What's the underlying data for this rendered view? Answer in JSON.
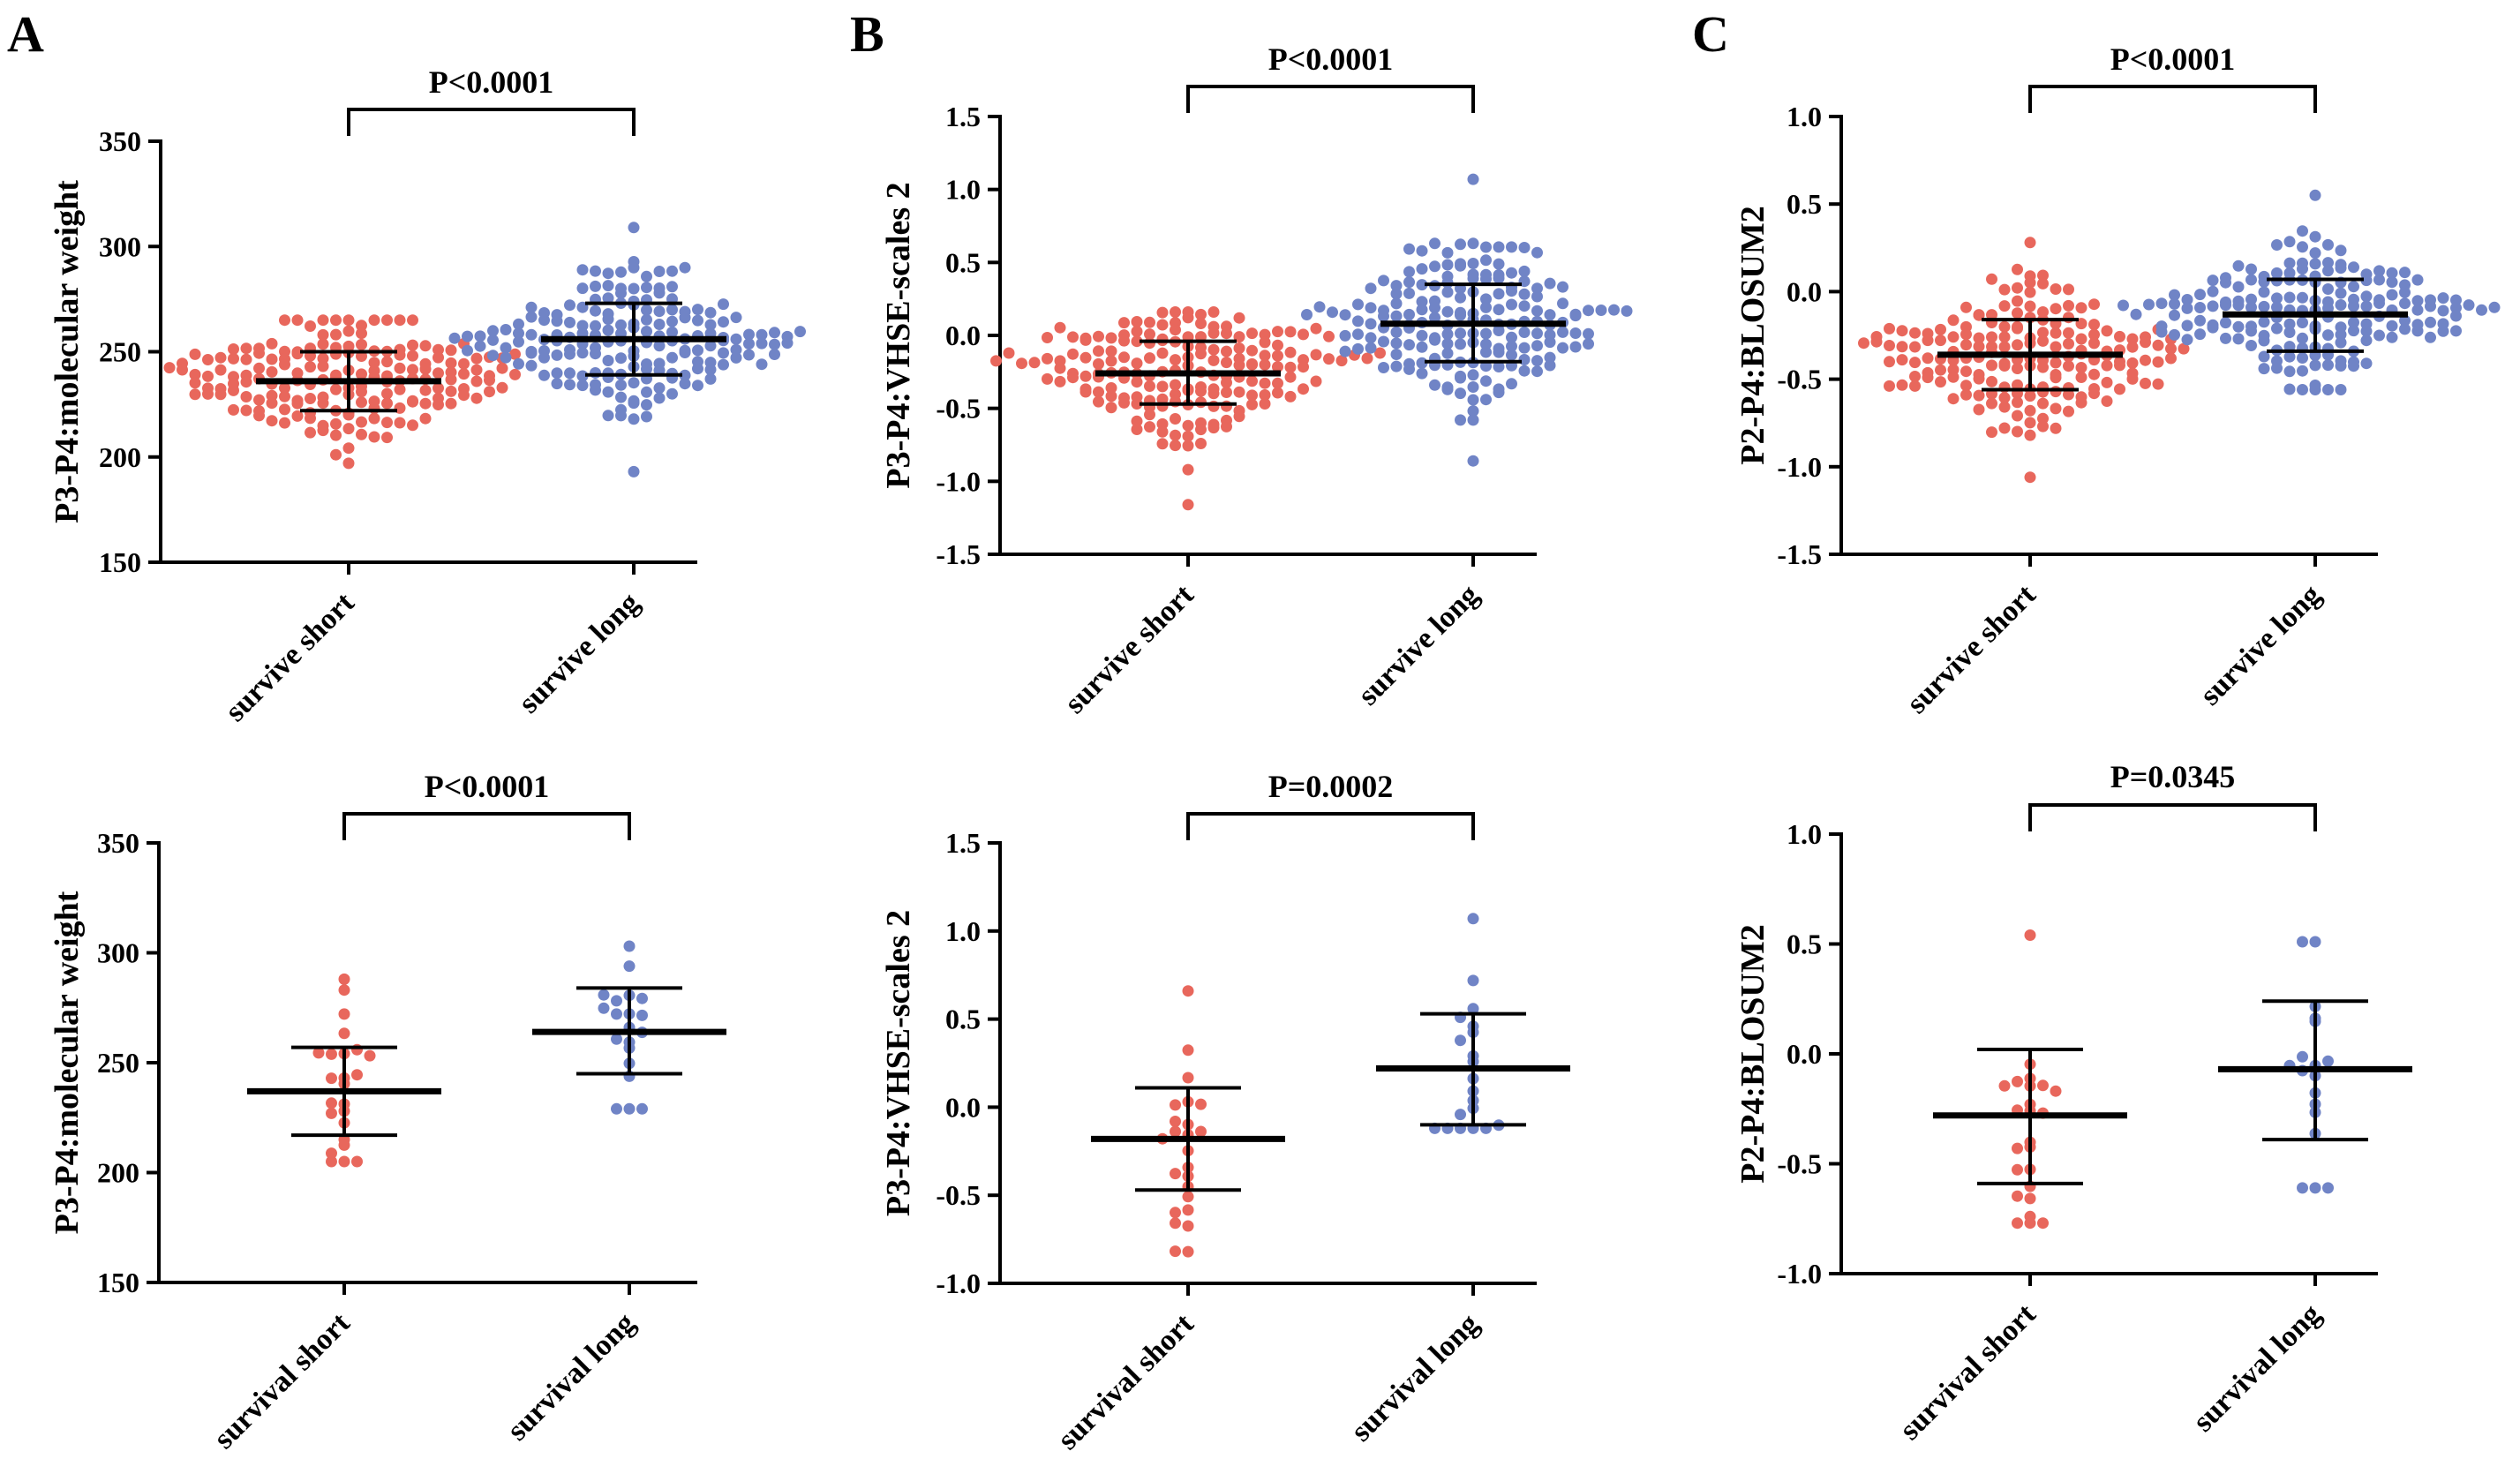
{
  "panel_letters": [
    "A",
    "B",
    "C"
  ],
  "colors": {
    "short": "#e8675c",
    "long": "#7084c6",
    "axis": "#000000"
  },
  "chart_data": [
    {
      "type": "scatter",
      "panel": "A",
      "ylabel": "P3-P4:molecular weight",
      "ylim": [
        150,
        350
      ],
      "yticks": [
        150,
        200,
        250,
        300,
        350
      ],
      "categories": [
        "survive short",
        "survive long"
      ],
      "pvalue": "P<0.0001",
      "series": [
        {
          "mean": 236,
          "sd_low": 222,
          "sd_high": 250,
          "n": 180,
          "min": 197,
          "max": 265,
          "outliers": []
        },
        {
          "mean": 256,
          "sd_low": 239,
          "sd_high": 273,
          "n": 180,
          "min": 218,
          "max": 309,
          "outliers": [
            193
          ]
        }
      ]
    },
    {
      "type": "scatter",
      "panel": "B",
      "ylabel": "P3-P4:VHSE-scales 2",
      "ylim": [
        -1.5,
        1.5
      ],
      "yticks": [
        -1.5,
        -1.0,
        -0.5,
        0.0,
        0.5,
        1.0,
        1.5
      ],
      "categories": [
        "survive short",
        "survive long"
      ],
      "pvalue": "P<0.0001",
      "series": [
        {
          "mean": -0.26,
          "sd_low": -0.47,
          "sd_high": -0.04,
          "n": 180,
          "min": -0.92,
          "max": 0.16,
          "outliers": [
            -1.16
          ]
        },
        {
          "mean": 0.08,
          "sd_low": -0.18,
          "sd_high": 0.35,
          "n": 180,
          "min": -0.58,
          "max": 0.63,
          "outliers": [
            1.07,
            -0.86
          ]
        }
      ]
    },
    {
      "type": "scatter",
      "panel": "C",
      "ylabel": "P2-P4:BLOSUM2",
      "ylim": [
        -1.5,
        1.0
      ],
      "yticks": [
        -1.5,
        -1.0,
        -0.5,
        0.0,
        0.5,
        1.0
      ],
      "categories": [
        "survive short",
        "survive long"
      ],
      "pvalue": "P<0.0001",
      "series": [
        {
          "mean": -0.36,
          "sd_low": -0.56,
          "sd_high": -0.16,
          "n": 180,
          "min": -0.82,
          "max": 0.28,
          "outliers": [
            -1.06
          ]
        },
        {
          "mean": -0.13,
          "sd_low": -0.34,
          "sd_high": 0.07,
          "n": 180,
          "min": -0.56,
          "max": 0.55,
          "outliers": []
        }
      ]
    },
    {
      "type": "scatter",
      "panel": "A2",
      "ylabel": "P3-P4:molecular weight",
      "ylim": [
        150,
        350
      ],
      "yticks": [
        150,
        200,
        250,
        300,
        350
      ],
      "categories": [
        "survival short",
        "survival long"
      ],
      "pvalue": "P<0.0001",
      "series": [
        {
          "mean": 237,
          "sd_low": 217,
          "sd_high": 257,
          "n": 24,
          "min": 205,
          "max": 288,
          "outliers": []
        },
        {
          "mean": 264,
          "sd_low": 245,
          "sd_high": 284,
          "n": 20,
          "min": 229,
          "max": 303,
          "outliers": []
        }
      ]
    },
    {
      "type": "scatter",
      "panel": "B2",
      "ylabel": "P3-P4:VHSE-scales 2",
      "ylim": [
        -1.0,
        1.5
      ],
      "yticks": [
        -1.0,
        -0.5,
        0.0,
        0.5,
        1.0,
        1.5
      ],
      "categories": [
        "survival short",
        "survival long"
      ],
      "pvalue": "P=0.0002",
      "series": [
        {
          "mean": -0.18,
          "sd_low": -0.47,
          "sd_high": 0.11,
          "n": 24,
          "min": -0.82,
          "max": 0.66,
          "outliers": []
        },
        {
          "mean": 0.22,
          "sd_low": -0.1,
          "sd_high": 0.53,
          "n": 20,
          "min": -0.12,
          "max": 1.07,
          "outliers": []
        }
      ]
    },
    {
      "type": "scatter",
      "panel": "C2",
      "ylabel": "P2-P4:BLOSUM2",
      "ylim": [
        -1.0,
        1.0
      ],
      "yticks": [
        -1.0,
        -0.5,
        0.0,
        0.5,
        1.0
      ],
      "categories": [
        "survival short",
        "survival long"
      ],
      "pvalue": "P=0.0345",
      "series": [
        {
          "mean": -0.28,
          "sd_low": -0.59,
          "sd_high": 0.02,
          "n": 24,
          "min": -0.77,
          "max": 0.54,
          "outliers": []
        },
        {
          "mean": -0.07,
          "sd_low": -0.39,
          "sd_high": 0.24,
          "n": 18,
          "min": -0.61,
          "max": 0.51,
          "outliers": []
        }
      ]
    }
  ]
}
